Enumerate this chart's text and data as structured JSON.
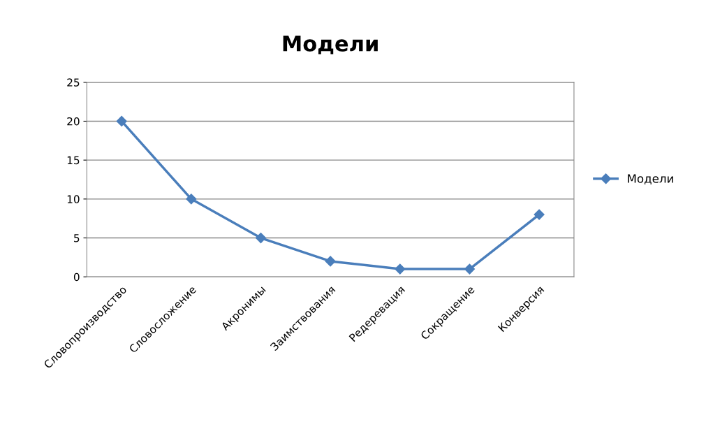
{
  "chart_data": {
    "type": "line",
    "title": "Модели",
    "categories": [
      "Словопроизводство",
      "Словосложение",
      "Акронимы",
      "Заимствования",
      "Редеревация",
      "Сокращение",
      "Конверсия"
    ],
    "series": [
      {
        "name": "Модели",
        "color": "#4a7ebb",
        "values": [
          20,
          10,
          5,
          2,
          1,
          1,
          8
        ]
      }
    ],
    "ylim": [
      0,
      25
    ],
    "yticks": [
      0,
      5,
      10,
      15,
      20,
      25
    ],
    "grid": "y",
    "legend": "right",
    "marker": "diamond",
    "line_style": "solid"
  }
}
